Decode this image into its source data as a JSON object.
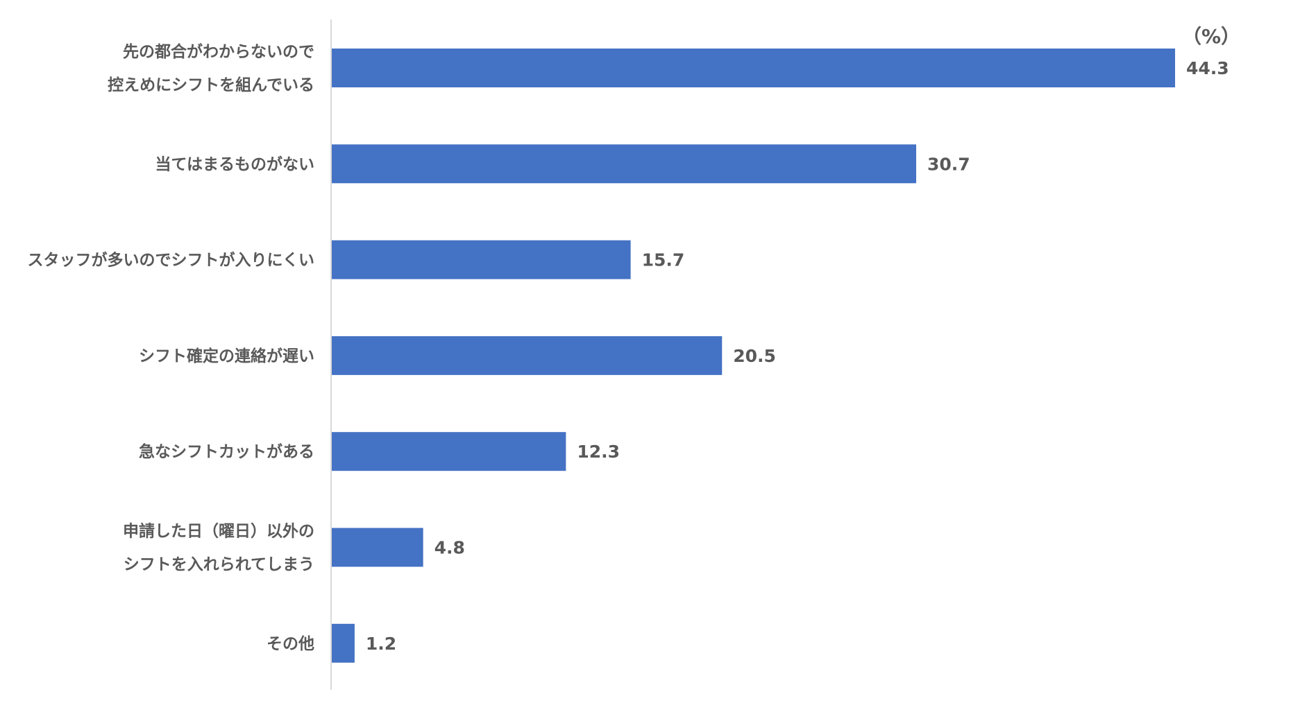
{
  "chart_data": {
    "type": "bar",
    "orientation": "horizontal",
    "unit": "（%）",
    "bar_color": "#4472C4",
    "axis_color": "#D9D9D9",
    "label_color": "#595959",
    "xlim": [
      0,
      50
    ],
    "categories": [
      [
        "先の都合がわからないので",
        "控えめにシフトを組んでいる"
      ],
      [
        "当てはまるものがない"
      ],
      [
        "スタッフが多いのでシフトが入りにくい"
      ],
      [
        "シフト確定の連絡が遅い"
      ],
      [
        "急なシフトカットがある"
      ],
      [
        "申請した日（曜日）以外の",
        "シフトを入れられてしまう"
      ],
      [
        "その他"
      ]
    ],
    "values": [
      44.3,
      30.7,
      15.7,
      20.5,
      12.3,
      4.8,
      1.2
    ]
  }
}
